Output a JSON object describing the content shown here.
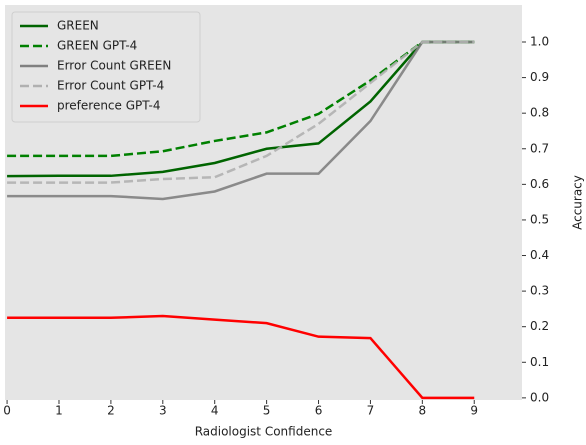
{
  "chart_data": {
    "type": "line",
    "x_label": "Radiologist Confidence",
    "y_label": "Accuracy",
    "x": [
      0,
      1,
      2,
      3,
      4,
      5,
      6,
      7,
      8,
      9
    ],
    "xlim": [
      -0.04,
      9.92
    ],
    "xticks": [
      0,
      1,
      2,
      3,
      4,
      5,
      6,
      7,
      8,
      9
    ],
    "ylim": [
      -0.006,
      1.104
    ],
    "yticks": [
      {
        "value": 0,
        "label": "0.0"
      },
      0.1,
      0.2,
      0.3,
      0.4,
      0.5,
      0.6,
      0.7,
      0.8,
      0.9,
      {
        "value": 1,
        "label": "1.0"
      }
    ],
    "y_axis_side": "right",
    "legend": "upper left",
    "series": [
      {
        "name": "GREEN",
        "color": "#006400",
        "linestyle": "solid",
        "values": [
          0.623,
          0.624,
          0.624,
          0.635,
          0.66,
          0.7,
          0.715,
          0.833,
          1.0,
          1.0
        ]
      },
      {
        "name": "GREEN GPT-4",
        "color": "#008000",
        "linestyle": "dashed",
        "values": [
          0.68,
          0.68,
          0.68,
          0.693,
          0.722,
          0.746,
          0.798,
          0.892,
          1.0,
          1.0
        ]
      },
      {
        "name": "Error Count GREEN",
        "color": "#808080",
        "linestyle": "solid",
        "values": [
          0.567,
          0.567,
          0.567,
          0.559,
          0.58,
          0.63,
          0.63,
          0.778,
          1.0,
          1.0
        ]
      },
      {
        "name": "Error Count GPT-4",
        "color": "#b0b0b0",
        "linestyle": "dashed",
        "values": [
          0.605,
          0.605,
          0.605,
          0.615,
          0.62,
          0.68,
          0.77,
          0.885,
          1.0,
          1.0
        ]
      },
      {
        "name": "preference GPT-4",
        "color": "#ff0000",
        "linestyle": "solid",
        "values": [
          0.225,
          0.225,
          0.225,
          0.23,
          0.22,
          0.21,
          0.172,
          0.168,
          0.0,
          0.0
        ]
      }
    ]
  }
}
